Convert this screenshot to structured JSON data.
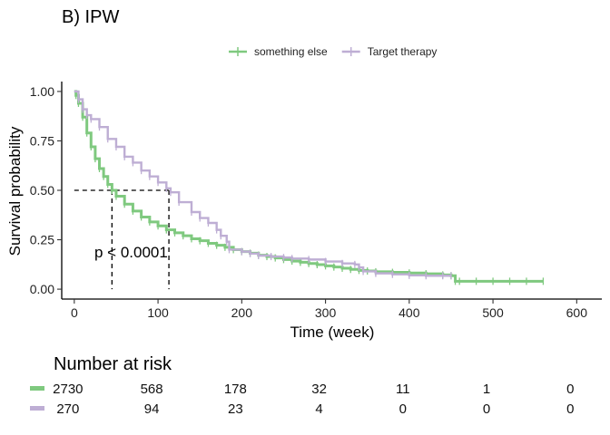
{
  "chart_data": {
    "type": "line",
    "title": "B) IPW",
    "xlabel": "Time (week)",
    "ylabel": "Survival probability",
    "xlim": [
      -15,
      630
    ],
    "ylim": [
      -0.05,
      1.05
    ],
    "x_ticks": [
      "0",
      "100",
      "200",
      "300",
      "400",
      "500",
      "600"
    ],
    "y_ticks": [
      "0.00",
      "0.25",
      "0.50",
      "0.75",
      "1.00"
    ],
    "grid": false,
    "legend_position": "top",
    "colors": {
      "something_else": "#7fc97f",
      "target_therapy": "#beaed4"
    },
    "series": [
      {
        "name": "something else",
        "color": "#7fc97f",
        "x": [
          0,
          2,
          5,
          10,
          15,
          20,
          25,
          30,
          35,
          40,
          45,
          50,
          60,
          70,
          80,
          90,
          100,
          110,
          120,
          130,
          140,
          150,
          160,
          170,
          180,
          190,
          200,
          210,
          220,
          230,
          240,
          250,
          260,
          270,
          280,
          290,
          300,
          310,
          320,
          330,
          340,
          350,
          360,
          380,
          400,
          420,
          440,
          450,
          455,
          460,
          480,
          500,
          520,
          540,
          560
        ],
        "y": [
          1.0,
          0.98,
          0.94,
          0.87,
          0.79,
          0.72,
          0.66,
          0.61,
          0.57,
          0.53,
          0.5,
          0.47,
          0.43,
          0.395,
          0.365,
          0.34,
          0.32,
          0.3,
          0.285,
          0.27,
          0.255,
          0.245,
          0.232,
          0.222,
          0.212,
          0.2,
          0.19,
          0.182,
          0.172,
          0.165,
          0.158,
          0.15,
          0.142,
          0.136,
          0.13,
          0.124,
          0.118,
          0.112,
          0.106,
          0.1,
          0.095,
          0.092,
          0.088,
          0.085,
          0.082,
          0.078,
          0.072,
          0.068,
          0.04,
          0.04,
          0.04,
          0.04,
          0.04,
          0.04,
          0.04
        ]
      },
      {
        "name": "Target therapy",
        "color": "#beaed4",
        "x": [
          0,
          5,
          10,
          15,
          20,
          30,
          40,
          50,
          60,
          70,
          80,
          90,
          100,
          110,
          115,
          125,
          140,
          150,
          160,
          170,
          175,
          182,
          185,
          200,
          210,
          220,
          235,
          250,
          260,
          280,
          300,
          320,
          335,
          340,
          345,
          360,
          380,
          400,
          420,
          440,
          450
        ],
        "y": [
          1.0,
          0.96,
          0.91,
          0.88,
          0.86,
          0.82,
          0.76,
          0.72,
          0.67,
          0.64,
          0.6,
          0.57,
          0.54,
          0.51,
          0.49,
          0.44,
          0.39,
          0.36,
          0.335,
          0.3,
          0.27,
          0.24,
          0.2,
          0.19,
          0.18,
          0.17,
          0.165,
          0.16,
          0.155,
          0.15,
          0.14,
          0.13,
          0.125,
          0.11,
          0.09,
          0.08,
          0.075,
          0.07,
          0.068,
          0.068,
          0.068
        ]
      }
    ],
    "annotations": {
      "pvalue": "p < 0.0001",
      "median_lines": [
        {
          "x": 45,
          "y": 0.5
        },
        {
          "x": 113,
          "y": 0.5
        }
      ]
    },
    "risk_table": {
      "title": "Number at risk",
      "times": [
        0,
        100,
        200,
        300,
        400,
        500,
        600
      ],
      "rows": [
        {
          "color": "#7fc97f",
          "values": [
            "2730",
            "568",
            "178",
            "32",
            "11",
            "1",
            "0"
          ]
        },
        {
          "color": "#beaed4",
          "values": [
            "270",
            "94",
            "23",
            "4",
            "0",
            "0",
            "0"
          ]
        }
      ]
    }
  }
}
